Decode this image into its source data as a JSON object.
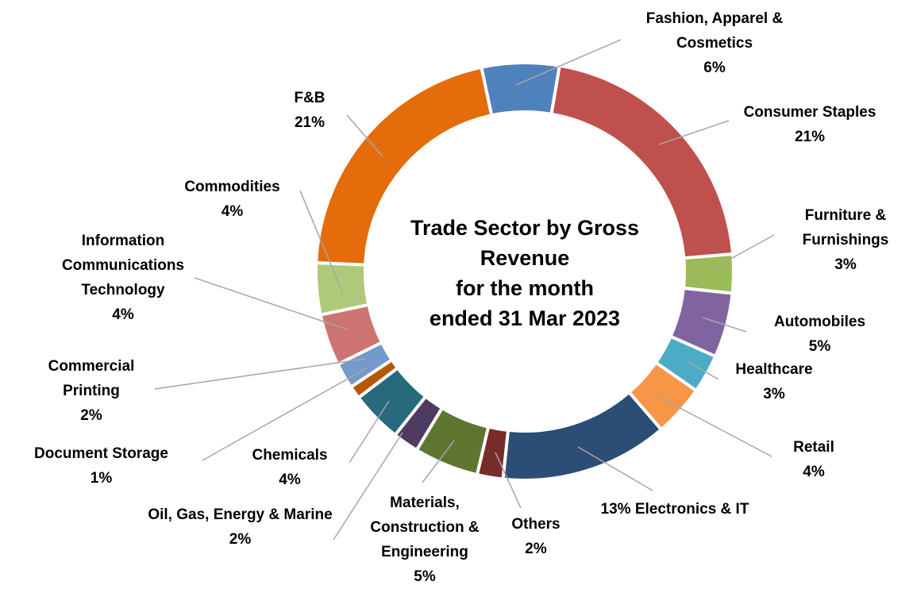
{
  "chart_data": {
    "type": "donut",
    "title": "Trade Sector by Gross\nRevenue\nfor the month\nended 31 Mar 2023",
    "categories": [
      "Fashion, Apparel & Cosmetics",
      "Consumer Staples",
      "Furniture & Furnishings",
      "Automobiles",
      "Healthcare",
      "Retail",
      "Electronics & IT",
      "Others",
      "Materials, Construction & Engineering",
      "Oil, Gas, Energy & Marine",
      "Chemicals",
      "Document Storage",
      "Commercial Printing",
      "Information Communications Technology",
      "Commodities",
      "F&B"
    ],
    "values": [
      6,
      21,
      3,
      5,
      3,
      4,
      13,
      2,
      5,
      2,
      4,
      1,
      2,
      4,
      4,
      21
    ],
    "value_labels": [
      "6%",
      "21%",
      "3%",
      "5%",
      "3%",
      "4%",
      "13%",
      "2%",
      "5%",
      "2%",
      "4%",
      "1%",
      "2%",
      "4%",
      "4%",
      "21%"
    ],
    "colors": [
      "#4f81bd",
      "#c0504d",
      "#9bbb59",
      "#8064a2",
      "#4bacc6",
      "#f79646",
      "#2c4d75",
      "#772c2a",
      "#5f7530",
      "#4d3b62",
      "#276a7c",
      "#b65708",
      "#729aca",
      "#cd7371",
      "#afc97a",
      "#e46c0a"
    ]
  }
}
